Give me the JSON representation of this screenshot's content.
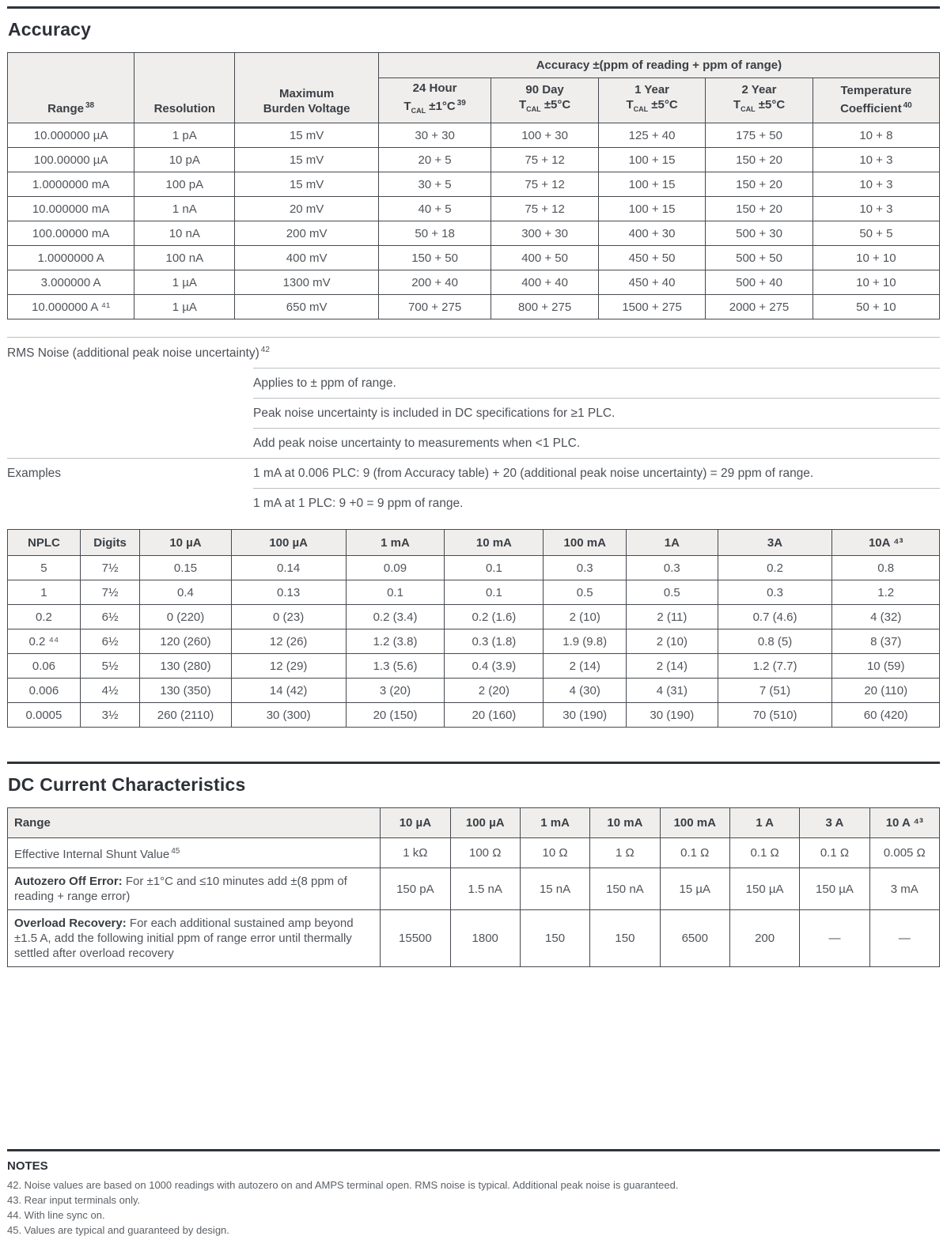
{
  "accuracy": {
    "title": "Accuracy",
    "col_range": "Range",
    "col_range_sup": "38",
    "col_resolution": "Resolution",
    "col_burden_line1": "Maximum",
    "col_burden_line2": "Burden Voltage",
    "span_header": "Accuracy ±(ppm of reading + ppm of range)",
    "periods": [
      {
        "label": "24 Hour",
        "t": "T",
        "sub": "CAL",
        "temp": "±1°C",
        "sup": "39"
      },
      {
        "label": "90 Day",
        "t": "T",
        "sub": "CAL",
        "temp": "±5°C",
        "sup": ""
      },
      {
        "label": "1 Year",
        "t": "T",
        "sub": "CAL",
        "temp": "±5°C",
        "sup": ""
      },
      {
        "label": "2 Year",
        "t": "T",
        "sub": "CAL",
        "temp": "±5°C",
        "sup": ""
      }
    ],
    "tempco": {
      "line1": "Temperature",
      "line2": "Coefficient",
      "sup": "40"
    },
    "rows": [
      [
        "10.000000 µA",
        "1 pA",
        "15 mV",
        "30 + 30",
        "100 + 30",
        "125 + 40",
        "175 + 50",
        "10 + 8"
      ],
      [
        "100.00000 µA",
        "10 pA",
        "15 mV",
        "20 + 5",
        "75 + 12",
        "100 + 15",
        "150 + 20",
        "10 + 3"
      ],
      [
        "1.0000000 mA",
        "100 pA",
        "15 mV",
        "30 + 5",
        "75 + 12",
        "100 + 15",
        "150 + 20",
        "10 + 3"
      ],
      [
        "10.000000 mA",
        "1 nA",
        "20 mV",
        "40 + 5",
        "75 + 12",
        "100 + 15",
        "150 + 20",
        "10 + 3"
      ],
      [
        "100.00000 mA",
        "10 nA",
        "200 mV",
        "50 + 18",
        "300 + 30",
        "400 + 30",
        "500 + 30",
        "50 + 5"
      ],
      [
        "1.0000000 A",
        "100 nA",
        "400 mV",
        "150 + 50",
        "400 + 50",
        "450 + 50",
        "500 + 50",
        "10 + 10"
      ],
      [
        "3.000000 A",
        "1 µA",
        "1300 mV",
        "200 + 40",
        "400 + 40",
        "450 + 40",
        "500 + 40",
        "10 + 10"
      ],
      [
        "10.000000 A ⁴¹",
        "1 µA",
        "650 mV",
        "700 + 275",
        "800 + 275",
        "1500 + 275",
        "2000 + 275",
        "50 + 10"
      ]
    ]
  },
  "rms": {
    "heading": "RMS Noise (additional peak noise uncertainty)",
    "heading_sup": "42",
    "notes": [
      "Applies to ± ppm of range.",
      "Peak noise uncertainty is included in DC specifications for ≥1 PLC.",
      "Add peak noise uncertainty to measurements when <1 PLC."
    ],
    "examples_label": "Examples",
    "examples": [
      "1 mA at 0.006 PLC: 9 (from Accuracy table) + 20 (additional peak noise uncertainty) = 29 ppm of range.",
      "1 mA at 1 PLC: 9 +0 = 9 ppm of range."
    ]
  },
  "nplc": {
    "headers": [
      "NPLC",
      "Digits",
      "10 µA",
      "100 µA",
      "1 mA",
      "10 mA",
      "100 mA",
      "1A",
      "3A",
      "10A ⁴³"
    ],
    "rows": [
      [
        "5",
        "7½",
        "0.15",
        "0.14",
        "0.09",
        "0.1",
        "0.3",
        "0.3",
        "0.2",
        "0.8"
      ],
      [
        "1",
        "7½",
        "0.4",
        "0.13",
        "0.1",
        "0.1",
        "0.5",
        "0.5",
        "0.3",
        "1.2"
      ],
      [
        "0.2",
        "6½",
        "0 (220)",
        "0 (23)",
        "0.2 (3.4)",
        "0.2 (1.6)",
        "2 (10)",
        "2 (11)",
        "0.7 (4.6)",
        "4 (32)"
      ],
      [
        "0.2 ⁴⁴",
        "6½",
        "120 (260)",
        "12 (26)",
        "1.2 (3.8)",
        "0.3 (1.8)",
        "1.9 (9.8)",
        "2 (10)",
        "0.8 (5)",
        "8 (37)"
      ],
      [
        "0.06",
        "5½",
        "130 (280)",
        "12 (29)",
        "1.3 (5.6)",
        "0.4 (3.9)",
        "2 (14)",
        "2 (14)",
        "1.2 (7.7)",
        "10 (59)"
      ],
      [
        "0.006",
        "4½",
        "130 (350)",
        "14 (42)",
        "3 (20)",
        "2 (20)",
        "4 (30)",
        "4 (31)",
        "7 (51)",
        "20 (110)"
      ],
      [
        "0.0005",
        "3½",
        "260 (2110)",
        "30 (300)",
        "20 (150)",
        "20 (160)",
        "30 (190)",
        "30 (190)",
        "70 (510)",
        "60 (420)"
      ]
    ]
  },
  "dc": {
    "title": "DC Current Characteristics",
    "headers": [
      "Range",
      "10 µA",
      "100 µA",
      "1 mA",
      "10 mA",
      "100 mA",
      "1 A",
      "3 A",
      "10 A ⁴³"
    ],
    "rows": [
      {
        "label": "Effective Internal Shunt Value",
        "sup": "45",
        "values": [
          "1 kΩ",
          "100 Ω",
          "10 Ω",
          "1 Ω",
          "0.1 Ω",
          "0.1 Ω",
          "0.1 Ω",
          "0.005 Ω"
        ]
      },
      {
        "bold": "Autozero Off Error:",
        "rest": " For ±1°C and ≤10 minutes add ±(8 ppm of reading + range error)",
        "values": [
          "150 pA",
          "1.5 nA",
          "15 nA",
          "150 nA",
          "15 µA",
          "150 µA",
          "150 µA",
          "3 mA"
        ]
      },
      {
        "bold": "Overload Recovery:",
        "rest": " For each additional sustained amp beyond ±1.5 A, add the following initial ppm of range error until thermally settled after overload recovery",
        "values": [
          "15500",
          "1800",
          "150",
          "150",
          "6500",
          "200",
          "—",
          "—"
        ]
      }
    ]
  },
  "notes": {
    "heading": "NOTES",
    "items": [
      "42. Noise values are based on 1000 readings with autozero on and AMPS terminal open. RMS noise is typical. Additional peak noise is guaranteed.",
      "43. Rear input terminals only.",
      "44. With line sync on.",
      "45. Values are typical and guaranteed by design."
    ]
  }
}
